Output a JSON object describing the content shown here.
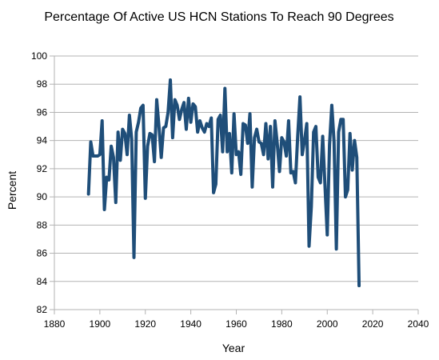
{
  "chart_data": {
    "type": "line",
    "title": "Percentage Of Active US HCN Stations To Reach 90 Degrees",
    "xlabel": "Year",
    "ylabel": "Percent",
    "xlim": [
      1880,
      2040
    ],
    "ylim": [
      82,
      100
    ],
    "xticks": [
      1880,
      1900,
      1920,
      1940,
      1960,
      1980,
      2000,
      2020,
      2040
    ],
    "yticks": [
      82,
      84,
      86,
      88,
      90,
      92,
      94,
      96,
      98,
      100
    ],
    "grid": "horizontal",
    "legend": "none",
    "series_color": "#1f4e79",
    "series": [
      {
        "x": [
          1895,
          1896,
          1897,
          1898,
          1899,
          1900,
          1901,
          1902,
          1903,
          1904,
          1905,
          1906,
          1907,
          1908,
          1909,
          1910,
          1911,
          1912,
          1913,
          1914,
          1915,
          1916,
          1917,
          1918,
          1919,
          1920,
          1921,
          1922,
          1923,
          1924,
          1925,
          1926,
          1927,
          1928,
          1929,
          1930,
          1931,
          1932,
          1933,
          1934,
          1935,
          1936,
          1937,
          1938,
          1939,
          1940,
          1941,
          1942,
          1943,
          1944,
          1945,
          1946,
          1947,
          1948,
          1949,
          1950,
          1951,
          1952,
          1953,
          1954,
          1955,
          1956,
          1957,
          1958,
          1959,
          1960,
          1961,
          1962,
          1963,
          1964,
          1965,
          1966,
          1967,
          1968,
          1969,
          1970,
          1971,
          1972,
          1973,
          1974,
          1975,
          1976,
          1977,
          1978,
          1979,
          1980,
          1981,
          1982,
          1983,
          1984,
          1985,
          1986,
          1987,
          1988,
          1989,
          1990,
          1991,
          1992,
          1993,
          1994,
          1995,
          1996,
          1997,
          1998,
          1999,
          2000,
          2001,
          2002,
          2003,
          2004,
          2005,
          2006,
          2007,
          2008,
          2009,
          2010,
          2011,
          2012,
          2013,
          2014
        ],
        "values": [
          90.2,
          93.9,
          92.9,
          92.9,
          92.9,
          93.0,
          95.4,
          89.1,
          91.4,
          91.2,
          93.6,
          92.8,
          89.6,
          94.6,
          92.6,
          94.8,
          94.5,
          93.0,
          95.8,
          94.1,
          85.7,
          94.6,
          95.3,
          96.3,
          96.5,
          89.9,
          93.6,
          94.5,
          94.4,
          92.5,
          96.9,
          95.0,
          92.8,
          94.9,
          95.0,
          96.0,
          98.3,
          94.2,
          96.9,
          96.5,
          95.5,
          96.2,
          96.7,
          94.8,
          97.0,
          95.3,
          96.6,
          96.4,
          94.6,
          95.4,
          94.9,
          94.6,
          95.2,
          95.0,
          95.6,
          90.3,
          90.9,
          95.5,
          95.8,
          93.2,
          97.7,
          93.2,
          94.5,
          91.7,
          95.9,
          93.0,
          93.2,
          91.6,
          95.2,
          95.1,
          93.8,
          95.9,
          90.7,
          94.2,
          94.8,
          93.9,
          93.8,
          93.0,
          95.2,
          92.7,
          95.0,
          90.7,
          95.4,
          93.8,
          91.8,
          94.2,
          93.9,
          92.9,
          95.4,
          91.7,
          91.8,
          91.0,
          94.3,
          97.1,
          93.0,
          94.0,
          95.2,
          86.5,
          89.3,
          94.6,
          95.0,
          91.4,
          91.0,
          94.3,
          90.8,
          87.3,
          93.7,
          96.5,
          93.9,
          86.3,
          94.6,
          95.5,
          95.5,
          90.0,
          90.5,
          94.5,
          91.9,
          94.0,
          92.8,
          83.7
        ]
      }
    ]
  }
}
